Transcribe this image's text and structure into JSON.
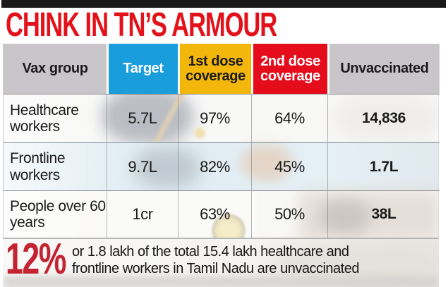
{
  "title": "CHINK IN TN’S ARMOUR",
  "table": {
    "columns": [
      {
        "label": "Vax group",
        "bg": "#c9c6c9",
        "color": "#1b1b1b"
      },
      {
        "label": "Target",
        "bg": "#1a9ddb",
        "color": "#ffffff"
      },
      {
        "label": "1st dose coverage",
        "bg": "#f3b70b",
        "color": "#1b1b1b"
      },
      {
        "label": "2nd dose coverage",
        "bg": "#e50d1c",
        "color": "#ffffff"
      },
      {
        "label": "Unvaccinated",
        "bg": "#c9c6c9",
        "color": "#1b1b1b"
      }
    ],
    "rows": [
      {
        "group": "Healthcare workers",
        "target": "5.7L",
        "dose1": "97%",
        "dose2": "64%",
        "unvaccinated": "14,836"
      },
      {
        "group": "Frontline workers",
        "target": "9.7L",
        "dose1": "82%",
        "dose2": "45%",
        "unvaccinated": "1.7L"
      },
      {
        "group": "People over 60 years",
        "target": "1cr",
        "dose1": "63%",
        "dose2": "50%",
        "unvaccinated": "38L"
      }
    ]
  },
  "footer": {
    "stat": "12%",
    "line1": "or 1.8 lakh of the total 15.4 lakh healthcare and",
    "line2": "frontline workers in Tamil Nadu are unvaccinated"
  },
  "colors": {
    "title_red": "#e3111a",
    "footer_red": "#c42331",
    "header_blue": "#1a9ddb",
    "header_yellow": "#f3b70b",
    "header_red": "#e50d1c",
    "header_gray": "#c9c6c9",
    "top_bar": "#191919"
  },
  "chart_data": {
    "type": "table",
    "title": "CHINK IN TN’S ARMOUR",
    "columns": [
      "Vax group",
      "Target",
      "1st dose coverage",
      "2nd dose coverage",
      "Unvaccinated"
    ],
    "rows": [
      [
        "Healthcare workers",
        "5.7L",
        "97%",
        "64%",
        "14,836"
      ],
      [
        "Frontline workers",
        "9.7L",
        "82%",
        "45%",
        "1.7L"
      ],
      [
        "People over 60 years",
        "1cr",
        "63%",
        "50%",
        "38L"
      ]
    ],
    "annotation": "12% or 1.8 lakh of the total 15.4 lakh healthcare and frontline workers in Tamil Nadu are unvaccinated"
  }
}
